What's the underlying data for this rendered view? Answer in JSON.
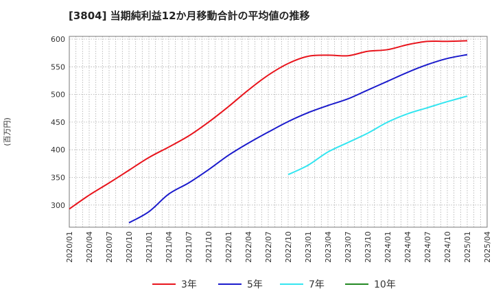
{
  "chart_data": {
    "type": "line",
    "title": "[3804]  当期純利益12か月移動合計の平均値の推移",
    "xlabel": "",
    "ylabel": "(百万円)",
    "ylim": [
      260,
      605
    ],
    "yticks": [
      300,
      350,
      400,
      450,
      500,
      550,
      600
    ],
    "x_tick_labels": [
      "2020/01",
      "2020/04",
      "2020/07",
      "2020/10",
      "2021/01",
      "2021/04",
      "2021/07",
      "2021/10",
      "2022/01",
      "2022/04",
      "2022/07",
      "2022/10",
      "2023/01",
      "2023/04",
      "2023/07",
      "2023/10",
      "2024/01",
      "2024/04",
      "2024/07",
      "2024/10",
      "2025/01",
      "2025/04"
    ],
    "grid": true,
    "legend_position": "bottom",
    "series": [
      {
        "name": "3年",
        "color": "#e8141c",
        "points": [
          [
            "2020/01",
            293
          ],
          [
            "2020/04",
            318
          ],
          [
            "2020/07",
            340
          ],
          [
            "2020/10",
            363
          ],
          [
            "2021/01",
            386
          ],
          [
            "2021/04",
            405
          ],
          [
            "2021/07",
            425
          ],
          [
            "2021/10",
            450
          ],
          [
            "2022/01",
            478
          ],
          [
            "2022/04",
            508
          ],
          [
            "2022/07",
            535
          ],
          [
            "2022/10",
            556
          ],
          [
            "2023/01",
            569
          ],
          [
            "2023/04",
            571
          ],
          [
            "2023/07",
            570
          ],
          [
            "2023/10",
            578
          ],
          [
            "2024/01",
            581
          ],
          [
            "2024/04",
            590
          ],
          [
            "2024/07",
            596
          ],
          [
            "2024/10",
            596
          ],
          [
            "2025/01",
            597
          ]
        ]
      },
      {
        "name": "5年",
        "color": "#1a1acc",
        "points": [
          [
            "2020/10",
            268
          ],
          [
            "2021/01",
            288
          ],
          [
            "2021/04",
            320
          ],
          [
            "2021/07",
            340
          ],
          [
            "2021/10",
            364
          ],
          [
            "2022/01",
            390
          ],
          [
            "2022/04",
            412
          ],
          [
            "2022/07",
            432
          ],
          [
            "2022/10",
            451
          ],
          [
            "2023/01",
            467
          ],
          [
            "2023/04",
            480
          ],
          [
            "2023/07",
            492
          ],
          [
            "2023/10",
            508
          ],
          [
            "2024/01",
            524
          ],
          [
            "2024/04",
            540
          ],
          [
            "2024/07",
            554
          ],
          [
            "2024/10",
            565
          ],
          [
            "2025/01",
            572
          ]
        ]
      },
      {
        "name": "7年",
        "color": "#33e5f0",
        "points": [
          [
            "2022/10",
            355
          ],
          [
            "2023/01",
            372
          ],
          [
            "2023/04",
            396
          ],
          [
            "2023/07",
            413
          ],
          [
            "2023/10",
            430
          ],
          [
            "2024/01",
            450
          ],
          [
            "2024/04",
            465
          ],
          [
            "2024/07",
            476
          ],
          [
            "2024/10",
            487
          ],
          [
            "2025/01",
            497
          ]
        ]
      },
      {
        "name": "10年",
        "color": "#228822",
        "points": []
      }
    ]
  }
}
